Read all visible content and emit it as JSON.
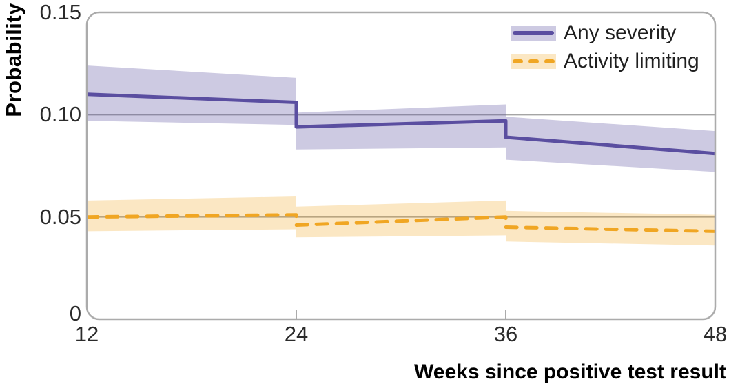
{
  "chart_data": {
    "type": "line",
    "xlabel": "Weeks since positive test result",
    "ylabel": "Probability",
    "xlim": [
      12,
      48
    ],
    "ylim": [
      0,
      0.15
    ],
    "xticks": {
      "labels": [
        "12",
        "24",
        "36",
        "48"
      ],
      "values": [
        12,
        24,
        36,
        48
      ]
    },
    "yticks": {
      "labels": [
        "0.15",
        "0.10",
        "0.05",
        "0"
      ],
      "values": [
        0.15,
        0.1,
        0.05,
        0
      ]
    },
    "gridlines": [
      0.1,
      0.05
    ],
    "xtick_marks": [
      24,
      36
    ],
    "legend_position": "top-right",
    "grid_on": true,
    "colors": {
      "axis": "#ababab",
      "grid": "#a5a5a5",
      "tick_text": "#2b2b2b",
      "title_text": "#000000"
    },
    "series": [
      {
        "name": "Any severity",
        "line_style": "solid",
        "color": "#5a4ea0",
        "band_opacity": 0.3,
        "line": [
          [
            12,
            0.11
          ],
          [
            24,
            0.106
          ],
          [
            24,
            0.094
          ],
          [
            36,
            0.097
          ],
          [
            36,
            0.089
          ],
          [
            48,
            0.081
          ]
        ],
        "band_upper": [
          [
            12,
            0.124
          ],
          [
            24,
            0.118
          ],
          [
            24,
            0.101
          ],
          [
            36,
            0.105
          ],
          [
            36,
            0.099
          ],
          [
            48,
            0.092
          ]
        ],
        "band_lower": [
          [
            12,
            0.097
          ],
          [
            24,
            0.095
          ],
          [
            24,
            0.083
          ],
          [
            36,
            0.084
          ],
          [
            36,
            0.078
          ],
          [
            48,
            0.072
          ]
        ]
      },
      {
        "name": "Activity limiting",
        "line_style": "dashed",
        "color": "#f0a623",
        "band_opacity": 0.27,
        "line": [
          [
            12,
            0.05
          ],
          [
            24,
            0.051
          ],
          [
            24,
            0.046
          ],
          [
            36,
            0.05
          ],
          [
            36,
            0.045
          ],
          [
            48,
            0.043
          ]
        ],
        "band_upper": [
          [
            12,
            0.058
          ],
          [
            24,
            0.06
          ],
          [
            24,
            0.055
          ],
          [
            36,
            0.058
          ],
          [
            36,
            0.053
          ],
          [
            48,
            0.051
          ]
        ],
        "band_lower": [
          [
            12,
            0.043
          ],
          [
            24,
            0.044
          ],
          [
            24,
            0.04
          ],
          [
            36,
            0.041
          ],
          [
            36,
            0.038
          ],
          [
            48,
            0.036
          ]
        ]
      }
    ]
  }
}
